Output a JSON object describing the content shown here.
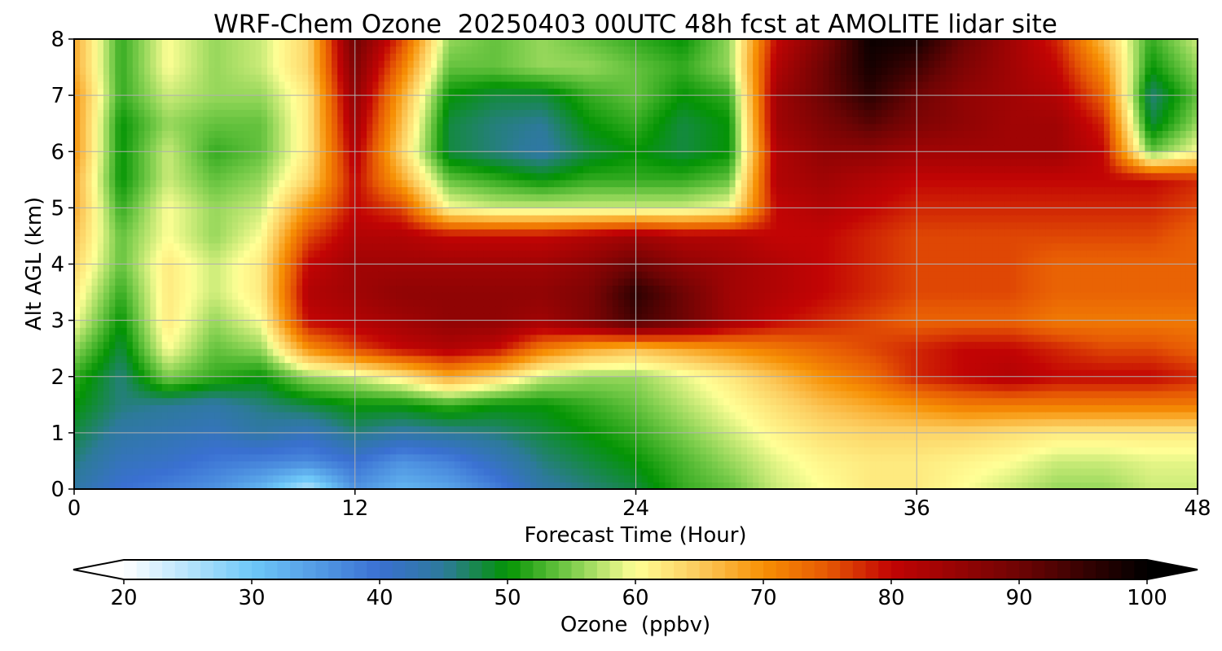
{
  "chart_data": {
    "type": "heatmap",
    "title": "WRF-Chem Ozone  20250403 00UTC 48h fcst at AMOLITE lidar site",
    "xlabel": "Forecast Time (Hour)",
    "ylabel": "Alt AGL (km)",
    "xlim": [
      0,
      48
    ],
    "ylim": [
      0,
      8
    ],
    "x_ticks": [
      "0",
      "12",
      "24",
      "36",
      "48"
    ],
    "y_ticks": [
      "0",
      "1",
      "2",
      "3",
      "4",
      "5",
      "6",
      "7",
      "8"
    ],
    "grid": true,
    "x_hours": [
      0,
      2,
      4,
      6,
      8,
      10,
      12,
      14,
      16,
      18,
      20,
      22,
      24,
      26,
      28,
      30,
      32,
      34,
      36,
      38,
      40,
      42,
      44,
      46,
      48
    ],
    "y_km": [
      0,
      0.5,
      1,
      1.5,
      2,
      2.5,
      3,
      3.5,
      4,
      4.5,
      5,
      5.5,
      6,
      6.5,
      7,
      7.5,
      8
    ],
    "ozone_ppbv": [
      [
        44,
        40,
        38,
        36,
        32,
        25,
        36,
        32,
        34,
        38,
        44,
        46,
        48,
        52,
        54,
        58,
        60,
        62,
        62,
        60,
        58,
        56,
        56,
        58,
        58
      ],
      [
        46,
        42,
        41,
        39,
        38,
        37,
        40,
        36,
        38,
        42,
        46,
        48,
        50,
        53,
        56,
        59,
        61,
        62,
        62,
        61,
        60,
        58,
        58,
        59,
        59
      ],
      [
        48,
        44,
        43,
        42,
        44,
        42,
        46,
        44,
        45,
        46,
        48,
        50,
        52,
        55,
        58,
        61,
        63,
        64,
        64,
        64,
        63,
        62,
        62,
        62,
        62
      ],
      [
        50,
        46,
        45,
        44,
        46,
        48,
        50,
        50,
        52,
        50,
        50,
        52,
        54,
        57,
        60,
        63,
        66,
        68,
        70,
        72,
        72,
        72,
        72,
        72,
        72
      ],
      [
        52,
        46,
        55,
        52,
        50,
        56,
        58,
        62,
        68,
        64,
        58,
        56,
        56,
        59,
        62,
        66,
        70,
        73,
        78,
        80,
        82,
        80,
        80,
        80,
        78
      ],
      [
        56,
        48,
        60,
        54,
        56,
        70,
        76,
        80,
        82,
        80,
        72,
        68,
        66,
        68,
        70,
        72,
        74,
        76,
        78,
        80,
        80,
        78,
        76,
        76,
        74
      ],
      [
        60,
        50,
        62,
        56,
        60,
        80,
        82,
        84,
        86,
        86,
        84,
        88,
        94,
        90,
        84,
        80,
        78,
        76,
        74,
        74,
        74,
        72,
        72,
        72,
        72
      ],
      [
        62,
        52,
        62,
        58,
        62,
        82,
        84,
        86,
        86,
        86,
        86,
        88,
        96,
        90,
        84,
        82,
        80,
        78,
        76,
        76,
        76,
        74,
        74,
        74,
        74
      ],
      [
        64,
        54,
        62,
        58,
        62,
        80,
        84,
        84,
        84,
        84,
        84,
        86,
        90,
        86,
        84,
        82,
        80,
        78,
        76,
        76,
        76,
        74,
        74,
        74,
        74
      ],
      [
        66,
        54,
        60,
        56,
        60,
        76,
        82,
        82,
        80,
        80,
        80,
        82,
        84,
        82,
        82,
        80,
        80,
        78,
        76,
        76,
        76,
        76,
        76,
        76,
        74
      ],
      [
        68,
        52,
        60,
        56,
        58,
        70,
        80,
        76,
        60,
        58,
        58,
        58,
        58,
        58,
        60,
        80,
        82,
        80,
        78,
        78,
        78,
        78,
        78,
        78,
        76
      ],
      [
        68,
        50,
        58,
        54,
        56,
        64,
        80,
        68,
        54,
        52,
        50,
        52,
        52,
        52,
        54,
        82,
        84,
        82,
        80,
        80,
        80,
        80,
        80,
        80,
        78
      ],
      [
        70,
        50,
        58,
        52,
        54,
        62,
        82,
        64,
        48,
        46,
        44,
        48,
        50,
        48,
        50,
        82,
        86,
        86,
        84,
        84,
        84,
        84,
        80,
        54,
        60
      ],
      [
        70,
        50,
        56,
        54,
        54,
        62,
        84,
        66,
        48,
        46,
        45,
        50,
        52,
        48,
        50,
        84,
        88,
        92,
        88,
        86,
        84,
        84,
        78,
        48,
        56
      ],
      [
        70,
        52,
        58,
        56,
        56,
        62,
        86,
        68,
        50,
        48,
        48,
        52,
        54,
        50,
        52,
        84,
        90,
        96,
        90,
        86,
        84,
        82,
        74,
        46,
        54
      ],
      [
        68,
        52,
        60,
        56,
        58,
        64,
        88,
        72,
        54,
        54,
        56,
        56,
        54,
        52,
        56,
        82,
        90,
        98,
        94,
        88,
        84,
        80,
        70,
        50,
        56
      ],
      [
        68,
        52,
        60,
        56,
        58,
        64,
        90,
        76,
        56,
        54,
        56,
        54,
        52,
        50,
        56,
        80,
        88,
        99,
        98,
        90,
        84,
        78,
        66,
        52,
        58
      ]
    ],
    "colorbar": {
      "label": "Ozone  (ppbv)",
      "min": 20,
      "max": 100,
      "tick_labels": [
        "20",
        "30",
        "40",
        "50",
        "60",
        "70",
        "80",
        "90",
        "100"
      ],
      "extend": "both",
      "stops": [
        {
          "value": 20,
          "color": "#ffffff"
        },
        {
          "value": 30,
          "color": "#6ec8f8"
        },
        {
          "value": 40,
          "color": "#3a70d2"
        },
        {
          "value": 45,
          "color": "#2d7a9a"
        },
        {
          "value": 50,
          "color": "#049404"
        },
        {
          "value": 55,
          "color": "#7ccd4c"
        },
        {
          "value": 60,
          "color": "#ffff96"
        },
        {
          "value": 65,
          "color": "#fcca5c"
        },
        {
          "value": 70,
          "color": "#f79004"
        },
        {
          "value": 75,
          "color": "#e65804"
        },
        {
          "value": 80,
          "color": "#c20404"
        },
        {
          "value": 90,
          "color": "#6e0404"
        },
        {
          "value": 100,
          "color": "#000000"
        }
      ]
    }
  }
}
